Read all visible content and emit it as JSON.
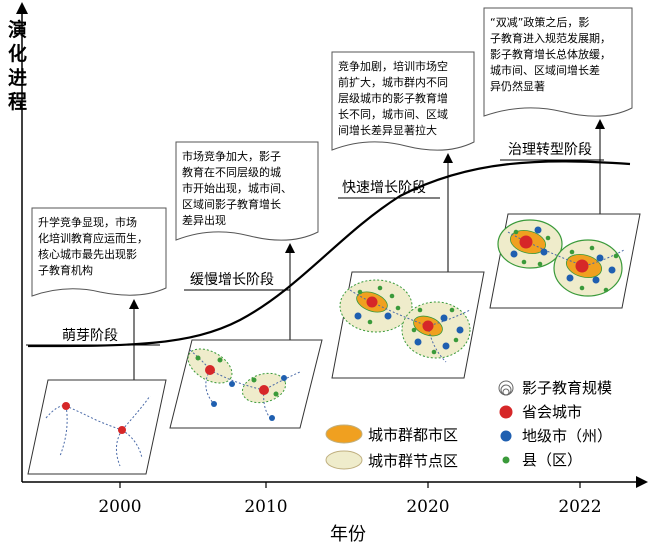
{
  "axes": {
    "y_label_chars": [
      "演",
      "化",
      "进",
      "程"
    ],
    "x_label": "年份",
    "x_ticks": [
      "2000",
      "2010",
      "2020",
      "2022"
    ]
  },
  "stages": [
    {
      "label": "萌芽阶段",
      "note": [
        "升学竞争显现，市场",
        "化培训教育应运而生，",
        "核心城市最先出现影",
        "子教育机构"
      ]
    },
    {
      "label": "缓慢增长阶段",
      "note": [
        "市场竞争加大，影子",
        "教育在不同层级的城",
        "市开始出现，城市间、",
        "区域间影子教育增长",
        "差异出现"
      ]
    },
    {
      "label": "快速增长阶段",
      "note": [
        "竞争加剧，培训市场空",
        "前扩大，城市群内不同",
        "层级城市的影子教育增",
        "长不同，城市间、区域",
        "间增长差异显著拉大"
      ]
    },
    {
      "label": "治理转型阶段",
      "note": [
        "“双减”政策之后，影",
        "子教育进入规范发展期，",
        "影子教育增长总体放缓，",
        "城市间、区域间增长差",
        "异仍然显著"
      ]
    }
  ],
  "legend_left": [
    {
      "label": "城市群都市区"
    },
    {
      "label": "城市群节点区"
    }
  ],
  "legend_right": [
    {
      "label": "影子教育规模"
    },
    {
      "label": "省会城市"
    },
    {
      "label": "地级市（州）"
    },
    {
      "label": "县（区）"
    }
  ],
  "colors": {
    "capital": "#d62728",
    "prefecture": "#1f5fb0",
    "county": "#3a9a3a",
    "metro_fill": "#f0a020",
    "node_fill": "#efeccb",
    "curve": "#000000"
  }
}
